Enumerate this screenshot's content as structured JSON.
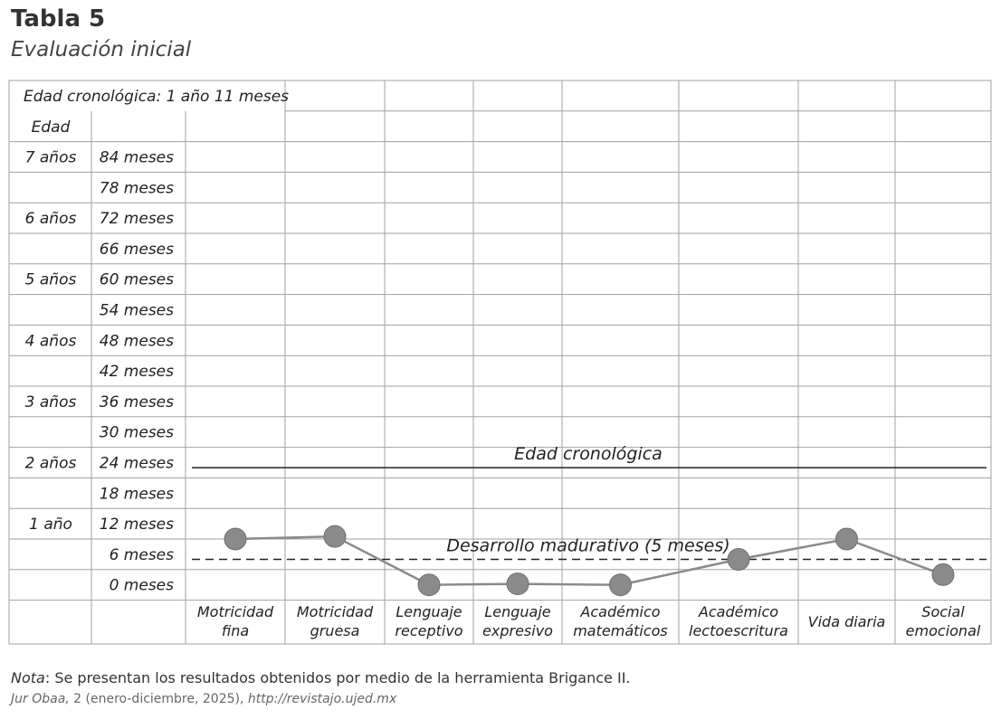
{
  "title": "Tabla 5",
  "subtitle": "Evaluación inicial",
  "header_cell": "Edad cronológica: 1 año 11 meses",
  "age_header": "Edad",
  "note": {
    "label": "Nota",
    "text": ": Se presentan los resultados obtenidos por medio de la herramienta Brigance II."
  },
  "citation": {
    "journal": "Jur Obaa,",
    "issue": " 2 (enero-diciembre, 2025), ",
    "url": "http://revistajo.ujed.mx"
  },
  "chart_data": {
    "type": "line",
    "title": "Evaluación inicial",
    "ylabel": "Edad",
    "ylim": [
      0,
      84
    ],
    "y_ticks": [
      {
        "value": 84,
        "label": "84 meses",
        "year_label": "7 años"
      },
      {
        "value": 78,
        "label": "78 meses",
        "year_label": ""
      },
      {
        "value": 72,
        "label": "72 meses",
        "year_label": "6 años"
      },
      {
        "value": 66,
        "label": "66 meses",
        "year_label": ""
      },
      {
        "value": 60,
        "label": "60 meses",
        "year_label": "5 años"
      },
      {
        "value": 54,
        "label": "54 meses",
        "year_label": ""
      },
      {
        "value": 48,
        "label": "48 meses",
        "year_label": "4 años"
      },
      {
        "value": 42,
        "label": "42 meses",
        "year_label": ""
      },
      {
        "value": 36,
        "label": "36 meses",
        "year_label": "3 años"
      },
      {
        "value": 30,
        "label": "30 meses",
        "year_label": ""
      },
      {
        "value": 24,
        "label": "24 meses",
        "year_label": "2 años"
      },
      {
        "value": 18,
        "label": "18 meses",
        "year_label": ""
      },
      {
        "value": 12,
        "label": "12 meses",
        "year_label": "1 año"
      },
      {
        "value": 6,
        "label": "6 meses",
        "year_label": ""
      },
      {
        "value": 0,
        "label": "0 meses",
        "year_label": ""
      }
    ],
    "categories": [
      [
        "Motricidad",
        "fina"
      ],
      [
        "Motricidad",
        "gruesa"
      ],
      [
        "Lenguaje",
        "receptivo"
      ],
      [
        "Lenguaje",
        "expresivo"
      ],
      [
        "Académico",
        "matemáticos"
      ],
      [
        "Académico",
        "lectoescritura"
      ],
      [
        "Vida diaria"
      ],
      [
        "Social",
        "emocional"
      ]
    ],
    "values": [
      9,
      9.5,
      0,
      0.2,
      0,
      5,
      9,
      2
    ],
    "reference_lines": [
      {
        "label": "Edad cronológica",
        "value": 23,
        "style": "solid"
      },
      {
        "label": "Desarrollo madurativo (5 meses)",
        "value": 5,
        "style": "dashed"
      }
    ],
    "grid": true,
    "colors": {
      "marker": "#8a8a8a",
      "line": "#8a8a8a",
      "grid": "#a0a0a0"
    }
  }
}
